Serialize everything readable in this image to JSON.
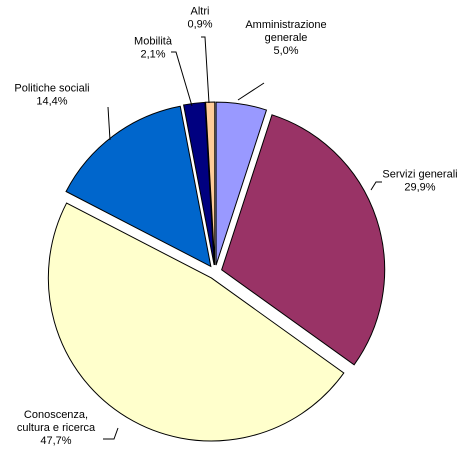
{
  "chart_data": {
    "type": "pie",
    "title": "",
    "slices": [
      {
        "name": "Amministrazione generale",
        "label_lines": [
          "Amministrazione",
          "generale"
        ],
        "value": 5.0,
        "value_label": "5,0%",
        "color": "#9999ff"
      },
      {
        "name": "Servizi generali",
        "label_lines": [
          "Servizi generali"
        ],
        "value": 29.9,
        "value_label": "29,9%",
        "color": "#993366"
      },
      {
        "name": "Conoscenza, cultura e ricerca",
        "label_lines": [
          "Conoscenza,",
          "cultura e ricerca"
        ],
        "value": 47.7,
        "value_label": "47,7%",
        "color": "#ffffcc"
      },
      {
        "name": "Politiche sociali",
        "label_lines": [
          "Politiche sociali"
        ],
        "value": 14.4,
        "value_label": "14,4%",
        "color": "#0066cc"
      },
      {
        "name": "Mobilità",
        "label_lines": [
          "Mobilità"
        ],
        "value": 2.1,
        "value_label": "2,1%",
        "color": "#000080"
      },
      {
        "name": "Altri",
        "label_lines": [
          "Altri"
        ],
        "value": 0.9,
        "value_label": "0,9%",
        "color": "#ffcc99"
      }
    ],
    "start_angle": "12 o'clock",
    "direction": "clockwise",
    "exploded": true,
    "legend": "none"
  }
}
